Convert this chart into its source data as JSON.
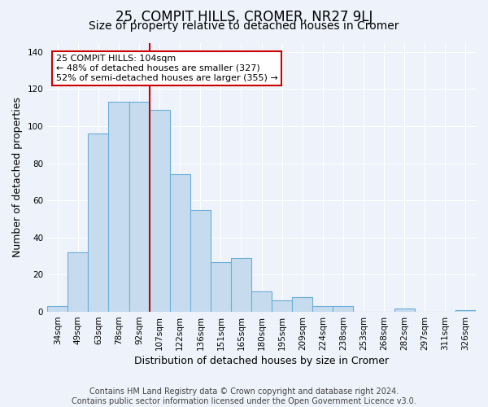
{
  "title": "25, COMPIT HILLS, CROMER, NR27 9LJ",
  "subtitle": "Size of property relative to detached houses in Cromer",
  "xlabel": "Distribution of detached houses by size in Cromer",
  "ylabel": "Number of detached properties",
  "categories": [
    "34sqm",
    "49sqm",
    "63sqm",
    "78sqm",
    "92sqm",
    "107sqm",
    "122sqm",
    "136sqm",
    "151sqm",
    "165sqm",
    "180sqm",
    "195sqm",
    "209sqm",
    "224sqm",
    "238sqm",
    "253sqm",
    "268sqm",
    "282sqm",
    "297sqm",
    "311sqm",
    "326sqm"
  ],
  "values": [
    3,
    32,
    96,
    113,
    113,
    109,
    74,
    55,
    27,
    29,
    11,
    6,
    8,
    3,
    3,
    0,
    0,
    2,
    0,
    0,
    1
  ],
  "bar_color": "#c6dcee",
  "bar_edge_color": "#6baed6",
  "vline_x_index": 4,
  "vline_color": "#cc0000",
  "annotation_text": "25 COMPIT HILLS: 104sqm\n← 48% of detached houses are smaller (327)\n52% of semi-detached houses are larger (355) →",
  "annotation_box_color": "white",
  "annotation_box_edge_color": "#cc0000",
  "ylim": [
    0,
    145
  ],
  "yticks": [
    0,
    20,
    40,
    60,
    80,
    100,
    120,
    140
  ],
  "footer_text": "Contains HM Land Registry data © Crown copyright and database right 2024.\nContains public sector information licensed under the Open Government Licence v3.0.",
  "background_color": "#eef2fa",
  "grid_color": "#ffffff",
  "title_fontsize": 12,
  "subtitle_fontsize": 10,
  "label_fontsize": 9,
  "tick_fontsize": 7.5,
  "footer_fontsize": 7,
  "annotation_fontsize": 8
}
